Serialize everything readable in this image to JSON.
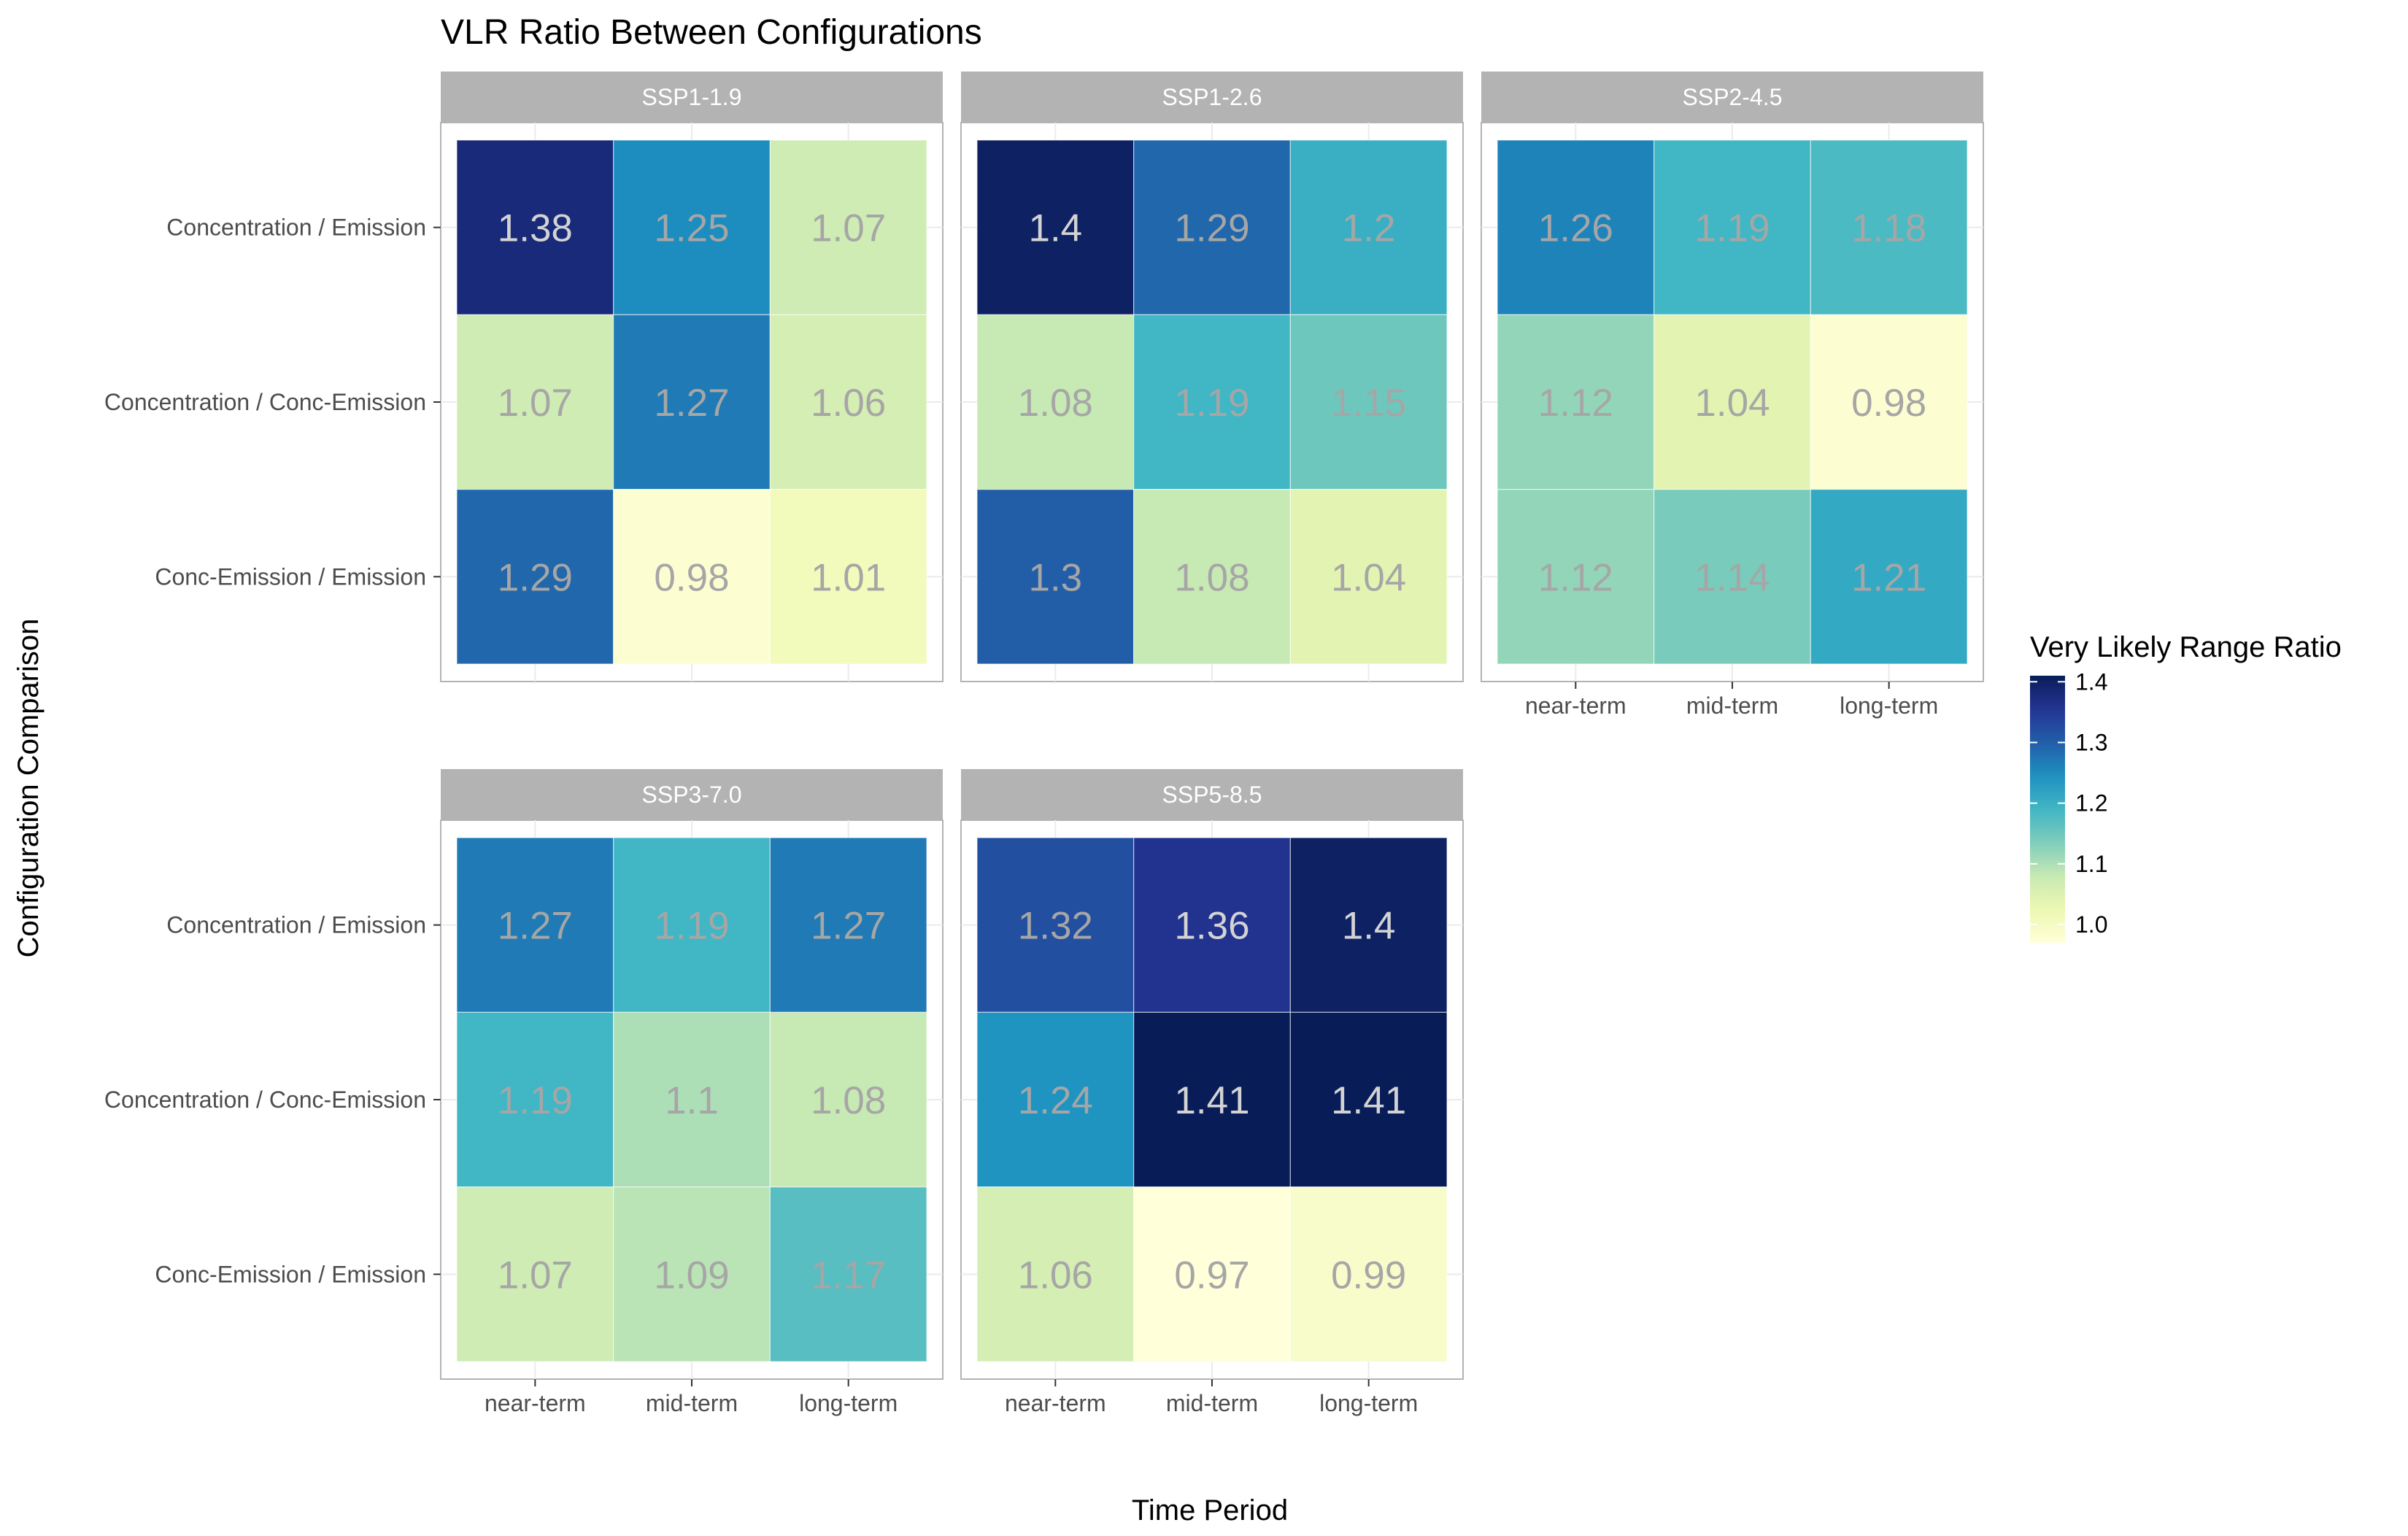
{
  "chart_data": {
    "type": "heatmap",
    "title": "VLR Ratio Between Configurations",
    "xlabel": "Time Period",
    "ylabel": "Configuration Comparison",
    "x_categories": [
      "near-term",
      "mid-term",
      "long-term"
    ],
    "y_categories": [
      "Concentration / Emission",
      "Concentration / Conc-Emission",
      "Conc-Emission / Emission"
    ],
    "panels": [
      {
        "name": "SSP1-1.9",
        "values": [
          [
            1.38,
            1.25,
            1.07
          ],
          [
            1.07,
            1.27,
            1.06
          ],
          [
            1.29,
            0.98,
            1.01
          ]
        ]
      },
      {
        "name": "SSP1-2.6",
        "values": [
          [
            1.4,
            1.29,
            1.2
          ],
          [
            1.08,
            1.19,
            1.15
          ],
          [
            1.3,
            1.08,
            1.04
          ]
        ]
      },
      {
        "name": "SSP2-4.5",
        "values": [
          [
            1.26,
            1.19,
            1.18
          ],
          [
            1.12,
            1.04,
            0.98
          ],
          [
            1.12,
            1.14,
            1.21
          ]
        ]
      },
      {
        "name": "SSP3-7.0",
        "values": [
          [
            1.27,
            1.19,
            1.27
          ],
          [
            1.19,
            1.1,
            1.08
          ],
          [
            1.07,
            1.09,
            1.17
          ]
        ]
      },
      {
        "name": "SSP5-8.5",
        "values": [
          [
            1.32,
            1.36,
            1.4
          ],
          [
            1.24,
            1.41,
            1.41
          ],
          [
            1.06,
            0.97,
            0.99
          ]
        ]
      }
    ],
    "legend": {
      "title": "Very Likely Range Ratio",
      "ticks": [
        "1.4",
        "1.3",
        "1.2",
        "1.1",
        "1.0"
      ],
      "tick_values": [
        1.4,
        1.3,
        1.2,
        1.1,
        1.0
      ],
      "range": [
        0.97,
        1.41
      ],
      "placement": "right"
    },
    "colors": {
      "scale": [
        "#ffffd9",
        "#edf8b1",
        "#c7e9b4",
        "#7fcdbb",
        "#41b6c4",
        "#1d91c0",
        "#225ea8",
        "#253494",
        "#081d58"
      ],
      "strip_bg": "#b3b3b3",
      "strip_text": "#ffffff",
      "panel_border": "#b3b3b3",
      "label_dark": "#a6a6a6",
      "label_light": "#d3d3d3",
      "grid": "#ebebeb"
    }
  }
}
